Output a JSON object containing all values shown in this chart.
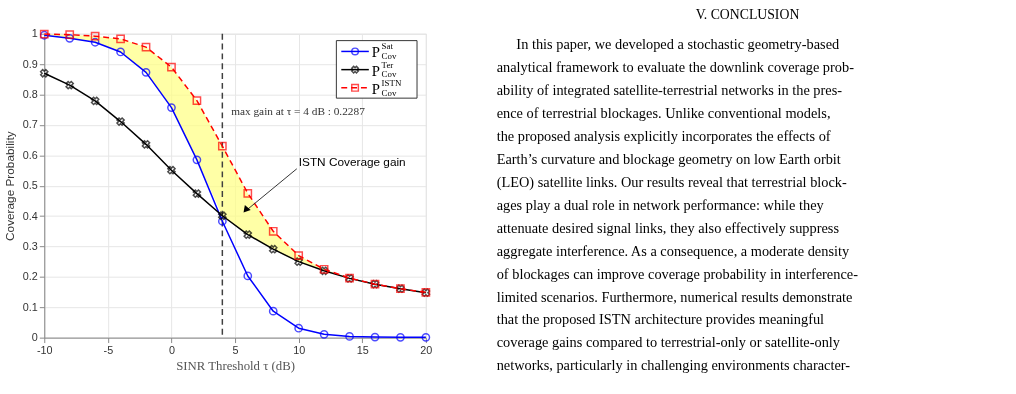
{
  "chart_data": {
    "type": "line",
    "xlabel": "SINR Threshold τ (dB)",
    "ylabel": "Coverage Probability",
    "x": [
      -10,
      -8,
      -6,
      -4,
      -2,
      0,
      2,
      4,
      6,
      8,
      10,
      12,
      14,
      16,
      18,
      20
    ],
    "series": [
      {
        "name": "P$^{Sat}$$_{Cov}$",
        "color": "#0000ff",
        "marker": "circle",
        "line_style": "solid",
        "values": [
          0.995,
          0.985,
          0.972,
          0.94,
          0.873,
          0.757,
          0.585,
          0.383,
          0.203,
          0.087,
          0.031,
          0.011,
          0.004,
          0.002,
          0.001,
          0.001
        ]
      },
      {
        "name": "P$^{Ter}$$_{Cov}$",
        "color": "#000000",
        "marker": "cross",
        "line_style": "solid",
        "values": [
          0.87,
          0.831,
          0.779,
          0.711,
          0.636,
          0.551,
          0.474,
          0.401,
          0.339,
          0.291,
          0.25,
          0.22,
          0.195,
          0.176,
          0.161,
          0.148
        ]
      },
      {
        "name": "P$^{ISTN}$$_{Cov}$",
        "color": "#ff0000",
        "marker": "square",
        "line_style": "dashed",
        "values": [
          0.999,
          0.997,
          0.992,
          0.983,
          0.956,
          0.89,
          0.78,
          0.63,
          0.475,
          0.35,
          0.27,
          0.225,
          0.196,
          0.176,
          0.161,
          0.149
        ],
        "lower": [
          0.995,
          0.985,
          0.972,
          0.94,
          0.873,
          0.757,
          0.585,
          0.401,
          0.339,
          0.291,
          0.25,
          0.22,
          0.195,
          0.176,
          0.161,
          0.148
        ],
        "upper": [
          0.999,
          0.997,
          0.992,
          0.983,
          0.956,
          0.89,
          0.78,
          0.63,
          0.475,
          0.35,
          0.27,
          0.225,
          0.196,
          0.176,
          0.161,
          0.149
        ]
      }
    ],
    "xlim": [
      -10,
      20
    ],
    "xticks": [
      -10,
      -5,
      0,
      5,
      10,
      15,
      20
    ],
    "ylim": [
      0,
      1
    ],
    "yticks": [
      0,
      0.1,
      0.2,
      0.3,
      0.4,
      0.5,
      0.6,
      0.7,
      0.8,
      0.9,
      1
    ],
    "grid": true,
    "legend": "top right",
    "ref_lines": [
      {
        "axis": "x",
        "value": 4,
        "color": "#404040",
        "line_style": "dashed"
      }
    ],
    "annotations": [
      "max gain at τ = 4 dB : 0.2287",
      "ISTN Coverage gain",
      "V. CONCLUSION",
      "In this paper, we developed a stochastic geometry-based",
      "analytical framework to evaluate the downlink coverage prob-",
      "ability of integrated satellite-terrestrial networks in the pres-",
      "ence of terrestrial blockages. Unlike conventional models,",
      "the proposed analysis explicitly incorporates the effects of",
      "Earth’s curvature and blockage geometry on low Earth orbit",
      "(LEO) satellite links. Our results reveal that terrestrial block-",
      "ages play a dual role in network performance: while they",
      "attenuate desired signal links, they also effectively suppress",
      "aggregate interference. As a consequence, a moderate density",
      "of blockages can improve coverage probability in interference-",
      "limited scenarios. Furthermore, numerical results demonstrate",
      "that the proposed ISTN architecture provides meaningful",
      "coverage gains compared to terrestrial-only or satellite-only",
      "networks, particularly in challenging environments character-"
    ]
  }
}
